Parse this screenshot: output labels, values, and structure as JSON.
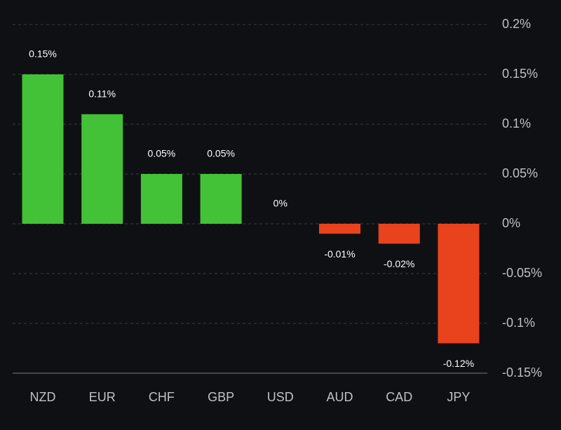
{
  "chart_data": {
    "type": "bar",
    "title": "",
    "xlabel": "",
    "ylabel": "",
    "categories": [
      "NZD",
      "EUR",
      "CHF",
      "GBP",
      "USD",
      "AUD",
      "CAD",
      "JPY"
    ],
    "values": [
      0.15,
      0.11,
      0.05,
      0.05,
      0,
      -0.01,
      -0.02,
      -0.12
    ],
    "value_labels": [
      "0.15%",
      "0.11%",
      "0.05%",
      "0.05%",
      "0%",
      "-0.01%",
      "-0.02%",
      "-0.12%"
    ],
    "ylim": [
      -0.15,
      0.2
    ],
    "y_ticks": [
      0.2,
      0.15,
      0.1,
      0.05,
      0,
      -0.05,
      -0.1,
      -0.15
    ],
    "y_tick_labels": [
      "0.2%",
      "0.15%",
      "0.1%",
      "0.05%",
      "0%",
      "-0.05%",
      "-0.1%",
      "-0.15%"
    ],
    "y_axis_position": "right",
    "grid": true,
    "colors": {
      "positive": "#43c137",
      "negative": "#e8431c",
      "background": "#0f1013"
    }
  }
}
